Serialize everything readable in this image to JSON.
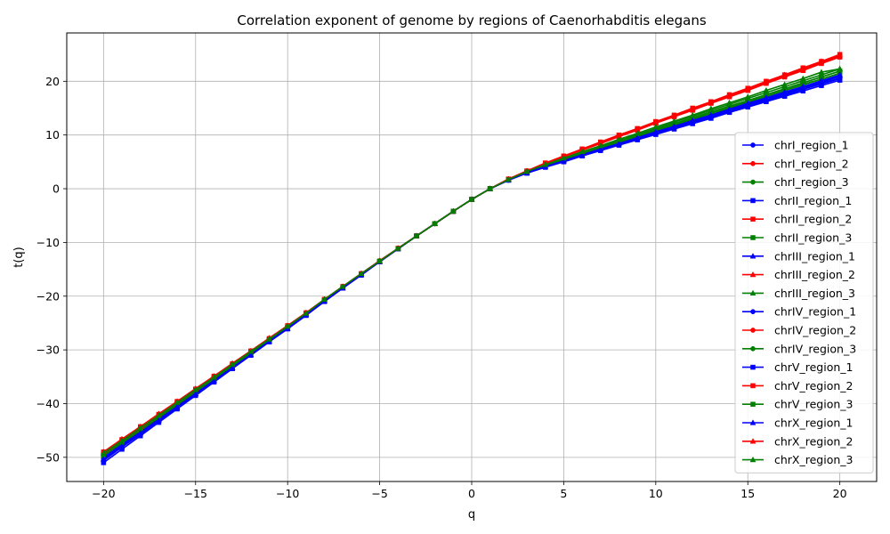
{
  "chart_data": {
    "type": "line",
    "title": "Correlation exponent of genome by regions of Caenorhabditis elegans",
    "xlabel": "q",
    "ylabel": "t(q)",
    "xlim": [
      -22,
      22
    ],
    "ylim": [
      -54.5,
      29
    ],
    "xticks": [
      -20,
      -15,
      -10,
      -5,
      0,
      5,
      10,
      15,
      20
    ],
    "yticks": [
      -50,
      -40,
      -30,
      -20,
      -10,
      0,
      10,
      20
    ],
    "grid": true,
    "legend_position": "right",
    "x": [
      -20,
      -19,
      -18,
      -17,
      -16,
      -15,
      -14,
      -13,
      -12,
      -11,
      -10,
      -9,
      -8,
      -7,
      -6,
      -5,
      -4,
      -3,
      -2,
      -1,
      0,
      1,
      2,
      3,
      4,
      5,
      6,
      7,
      8,
      9,
      10,
      11,
      12,
      13,
      14,
      15,
      16,
      17,
      18,
      19,
      20
    ],
    "series": [
      {
        "name": "chrI_region_1",
        "color": "#0000ff",
        "marker": "circle",
        "values": [
          -49.8,
          -47.4,
          -45.0,
          -42.6,
          -40.2,
          -37.8,
          -35.4,
          -33.0,
          -30.6,
          -28.2,
          -25.8,
          -23.4,
          -20.8,
          -18.3,
          -15.9,
          -13.5,
          -11.2,
          -8.8,
          -6.5,
          -4.2,
          -2.0,
          0.0,
          1.6,
          3.0,
          4.1,
          5.1,
          6.2,
          7.3,
          8.3,
          9.4,
          10.4,
          11.4,
          12.4,
          13.5,
          14.5,
          15.5,
          16.5,
          17.6,
          18.6,
          19.6,
          20.6
        ]
      },
      {
        "name": "chrI_region_2",
        "color": "#ff0000",
        "marker": "circle",
        "values": [
          -49.2,
          -46.9,
          -44.5,
          -42.1,
          -39.8,
          -37.4,
          -35.0,
          -32.7,
          -30.3,
          -28.0,
          -25.6,
          -23.2,
          -20.6,
          -18.3,
          -15.9,
          -13.5,
          -11.1,
          -8.8,
          -6.5,
          -4.2,
          -2.0,
          0.0,
          1.8,
          3.3,
          4.7,
          6.0,
          7.3,
          8.5,
          9.8,
          11.0,
          12.3,
          13.5,
          14.7,
          16.0,
          17.2,
          18.5,
          19.7,
          21.0,
          22.3,
          23.5,
          24.7
        ]
      },
      {
        "name": "chrI_region_3",
        "color": "#008000",
        "marker": "circle",
        "values": [
          -49.5,
          -47.1,
          -44.8,
          -42.4,
          -40.0,
          -37.6,
          -35.2,
          -32.9,
          -30.5,
          -28.1,
          -25.7,
          -23.3,
          -20.7,
          -18.3,
          -15.9,
          -13.5,
          -11.2,
          -8.8,
          -6.5,
          -4.2,
          -2.0,
          0.0,
          1.7,
          3.1,
          4.3,
          5.4,
          6.5,
          7.6,
          8.7,
          9.8,
          10.9,
          11.9,
          13.0,
          14.0,
          15.1,
          16.2,
          17.2,
          18.3,
          19.4,
          20.4,
          21.5
        ]
      },
      {
        "name": "chrII_region_1",
        "color": "#0000ff",
        "marker": "square",
        "values": [
          -51.0,
          -48.5,
          -46.0,
          -43.5,
          -41.0,
          -38.5,
          -36.0,
          -33.5,
          -31.0,
          -28.5,
          -26.0,
          -23.5,
          -21.0,
          -18.5,
          -16.0,
          -13.6,
          -11.2,
          -8.8,
          -6.5,
          -4.2,
          -2.0,
          0.0,
          1.6,
          2.9,
          4.0,
          5.0,
          6.1,
          7.1,
          8.1,
          9.1,
          10.1,
          11.1,
          12.1,
          13.1,
          14.2,
          15.2,
          16.2,
          17.2,
          18.2,
          19.2,
          20.2
        ]
      },
      {
        "name": "chrII_region_2",
        "color": "#ff0000",
        "marker": "square",
        "values": [
          -49.0,
          -46.7,
          -44.3,
          -42.0,
          -39.6,
          -37.3,
          -34.9,
          -32.6,
          -30.2,
          -27.9,
          -25.5,
          -23.1,
          -20.6,
          -18.2,
          -15.8,
          -13.5,
          -11.1,
          -8.8,
          -6.5,
          -4.2,
          -2.0,
          0.0,
          1.8,
          3.3,
          4.8,
          6.1,
          7.4,
          8.7,
          10.0,
          11.2,
          12.5,
          13.7,
          15.0,
          16.2,
          17.5,
          18.7,
          20.0,
          21.2,
          22.5,
          23.7,
          25.0
        ]
      },
      {
        "name": "chrII_region_3",
        "color": "#008000",
        "marker": "square",
        "values": [
          -49.6,
          -47.2,
          -44.9,
          -42.5,
          -40.1,
          -37.7,
          -35.3,
          -32.9,
          -30.6,
          -28.2,
          -25.8,
          -23.4,
          -20.8,
          -18.4,
          -16.0,
          -13.5,
          -11.2,
          -8.8,
          -6.5,
          -4.2,
          -2.0,
          0.0,
          1.7,
          3.1,
          4.3,
          5.5,
          6.6,
          7.7,
          8.8,
          9.9,
          11.0,
          12.1,
          13.2,
          14.3,
          15.4,
          16.4,
          17.5,
          18.6,
          19.7,
          20.8,
          21.9
        ]
      },
      {
        "name": "chrIII_region_1",
        "color": "#0000ff",
        "marker": "triangle",
        "values": [
          -50.3,
          -47.9,
          -45.4,
          -43.0,
          -40.6,
          -38.1,
          -35.7,
          -33.3,
          -30.9,
          -28.4,
          -26.0,
          -23.5,
          -20.9,
          -18.5,
          -16.0,
          -13.6,
          -11.2,
          -8.8,
          -6.5,
          -4.2,
          -2.0,
          0.0,
          1.6,
          3.0,
          4.2,
          5.2,
          6.3,
          7.4,
          8.5,
          9.5,
          10.6,
          11.6,
          12.7,
          13.7,
          14.8,
          15.8,
          16.9,
          17.9,
          19.0,
          20.0,
          21.1
        ]
      },
      {
        "name": "chrIII_region_2",
        "color": "#ff0000",
        "marker": "triangle",
        "values": [
          -49.0,
          -46.6,
          -44.3,
          -41.9,
          -39.6,
          -37.2,
          -34.9,
          -32.5,
          -30.2,
          -27.8,
          -25.5,
          -23.1,
          -20.6,
          -18.2,
          -15.8,
          -13.4,
          -11.1,
          -8.8,
          -6.5,
          -4.2,
          -2.0,
          0.0,
          1.8,
          3.3,
          4.7,
          6.0,
          7.3,
          8.6,
          9.8,
          11.1,
          12.4,
          13.6,
          14.9,
          16.1,
          17.4,
          18.6,
          19.9,
          21.1,
          22.4,
          23.6,
          24.9
        ]
      },
      {
        "name": "chrIII_region_3",
        "color": "#008000",
        "marker": "triangle",
        "values": [
          -49.3,
          -47.0,
          -44.6,
          -42.2,
          -39.9,
          -37.5,
          -35.1,
          -32.8,
          -30.4,
          -28.0,
          -25.6,
          -23.2,
          -20.7,
          -18.2,
          -15.9,
          -13.5,
          -11.1,
          -8.8,
          -6.5,
          -4.2,
          -2.0,
          0.0,
          1.7,
          3.2,
          4.4,
          5.6,
          6.7,
          7.9,
          9.0,
          10.1,
          11.2,
          12.4,
          13.5,
          14.6,
          15.7,
          16.8,
          17.9,
          19.0,
          20.1,
          21.2,
          22.3
        ]
      },
      {
        "name": "chrIV_region_1",
        "color": "#0000ff",
        "marker": "circle",
        "values": [
          -50.1,
          -47.7,
          -45.2,
          -42.8,
          -40.4,
          -38.0,
          -35.6,
          -33.1,
          -30.7,
          -28.3,
          -25.9,
          -23.5,
          -20.9,
          -18.4,
          -16.0,
          -13.6,
          -11.2,
          -8.8,
          -6.5,
          -4.2,
          -2.0,
          0.0,
          1.6,
          3.0,
          4.1,
          5.2,
          6.2,
          7.3,
          8.4,
          9.4,
          10.5,
          11.5,
          12.5,
          13.6,
          14.6,
          15.7,
          16.7,
          17.8,
          18.8,
          19.8,
          20.9
        ]
      },
      {
        "name": "chrIV_region_2",
        "color": "#ff0000",
        "marker": "circle",
        "values": [
          -49.1,
          -46.8,
          -44.4,
          -42.0,
          -39.7,
          -37.3,
          -35.0,
          -32.6,
          -30.3,
          -27.9,
          -25.5,
          -23.1,
          -20.6,
          -18.2,
          -15.8,
          -13.4,
          -11.1,
          -8.8,
          -6.5,
          -4.2,
          -2.0,
          0.0,
          1.8,
          3.3,
          4.7,
          6.0,
          7.3,
          8.5,
          9.8,
          11.0,
          12.3,
          13.5,
          14.8,
          16.0,
          17.3,
          18.5,
          19.8,
          21.0,
          22.2,
          23.5,
          24.7
        ]
      },
      {
        "name": "chrIV_region_3",
        "color": "#008000",
        "marker": "circle",
        "values": [
          -49.4,
          -47.1,
          -44.7,
          -42.3,
          -40.0,
          -37.6,
          -35.2,
          -32.8,
          -30.5,
          -28.1,
          -25.7,
          -23.3,
          -20.7,
          -18.3,
          -15.9,
          -13.5,
          -11.2,
          -8.8,
          -6.5,
          -4.2,
          -2.0,
          0.0,
          1.7,
          3.1,
          4.3,
          5.5,
          6.6,
          7.7,
          8.8,
          9.9,
          11.0,
          12.1,
          13.2,
          14.3,
          15.3,
          16.4,
          17.5,
          18.6,
          19.7,
          20.8,
          21.9
        ]
      },
      {
        "name": "chrV_region_1",
        "color": "#0000ff",
        "marker": "square",
        "values": [
          -50.6,
          -48.1,
          -45.7,
          -43.2,
          -40.8,
          -38.3,
          -35.9,
          -33.4,
          -31.0,
          -28.5,
          -26.1,
          -23.6,
          -21.0,
          -18.5,
          -16.1,
          -13.6,
          -11.2,
          -8.8,
          -6.5,
          -4.2,
          -2.0,
          0.0,
          1.6,
          2.9,
          4.0,
          5.1,
          6.1,
          7.2,
          8.2,
          9.2,
          10.3,
          11.3,
          12.3,
          13.3,
          14.4,
          15.4,
          16.4,
          17.4,
          18.5,
          19.5,
          20.5
        ]
      },
      {
        "name": "chrV_region_2",
        "color": "#ff0000",
        "marker": "square",
        "values": [
          -49.3,
          -46.9,
          -44.6,
          -42.2,
          -39.8,
          -37.5,
          -35.1,
          -32.7,
          -30.4,
          -28.0,
          -25.6,
          -23.2,
          -20.7,
          -18.3,
          -15.9,
          -13.5,
          -11.1,
          -8.8,
          -6.5,
          -4.2,
          -2.0,
          0.0,
          1.8,
          3.3,
          4.6,
          5.9,
          7.2,
          8.4,
          9.7,
          10.9,
          12.2,
          13.4,
          14.6,
          15.9,
          17.1,
          18.3,
          19.6,
          20.8,
          22.0,
          23.3,
          24.5
        ]
      },
      {
        "name": "chrV_region_3",
        "color": "#008000",
        "marker": "square",
        "values": [
          -49.7,
          -47.3,
          -45.0,
          -42.6,
          -40.2,
          -37.8,
          -35.4,
          -33.0,
          -30.6,
          -28.2,
          -25.8,
          -23.4,
          -20.8,
          -18.4,
          -16.0,
          -13.5,
          -11.2,
          -8.8,
          -6.5,
          -4.2,
          -2.0,
          0.0,
          1.7,
          3.1,
          4.2,
          5.3,
          6.4,
          7.5,
          8.6,
          9.7,
          10.7,
          11.8,
          12.9,
          14.0,
          15.0,
          16.1,
          17.2,
          18.3,
          19.3,
          20.4,
          21.5
        ]
      },
      {
        "name": "chrX_region_1",
        "color": "#0000ff",
        "marker": "triangle",
        "values": [
          -50.4,
          -48.0,
          -45.5,
          -43.1,
          -40.6,
          -38.2,
          -35.7,
          -33.3,
          -30.9,
          -28.4,
          -26.0,
          -23.5,
          -20.9,
          -18.5,
          -16.0,
          -13.6,
          -11.2,
          -8.8,
          -6.5,
          -4.2,
          -2.0,
          0.0,
          1.6,
          3.0,
          4.1,
          5.2,
          6.3,
          7.4,
          8.4,
          9.5,
          10.6,
          11.6,
          12.7,
          13.7,
          14.8,
          15.9,
          16.9,
          18.0,
          19.0,
          20.1,
          21.2
        ]
      },
      {
        "name": "chrX_region_2",
        "color": "#ff0000",
        "marker": "triangle",
        "values": [
          -49.0,
          -46.7,
          -44.3,
          -42.0,
          -39.6,
          -37.3,
          -34.9,
          -32.6,
          -30.2,
          -27.9,
          -25.5,
          -23.1,
          -20.6,
          -18.2,
          -15.8,
          -13.5,
          -11.1,
          -8.8,
          -6.5,
          -4.2,
          -2.0,
          0.0,
          1.8,
          3.3,
          4.7,
          6.0,
          7.3,
          8.6,
          9.8,
          11.1,
          12.4,
          13.6,
          14.9,
          16.1,
          17.4,
          18.6,
          19.9,
          21.2,
          22.4,
          23.7,
          24.9
        ]
      },
      {
        "name": "chrX_region_3",
        "color": "#008000",
        "marker": "triangle",
        "values": [
          -49.2,
          -46.9,
          -44.5,
          -42.2,
          -39.8,
          -37.4,
          -35.1,
          -32.7,
          -30.3,
          -28.0,
          -25.6,
          -23.2,
          -20.6,
          -18.2,
          -15.8,
          -13.5,
          -11.1,
          -8.8,
          -6.5,
          -4.2,
          -2.0,
          0.0,
          1.7,
          3.2,
          4.5,
          5.7,
          6.9,
          8.0,
          9.2,
          10.3,
          11.5,
          12.6,
          13.7,
          14.9,
          16.0,
          17.1,
          18.3,
          19.4,
          20.5,
          21.7,
          22.3
        ]
      }
    ]
  }
}
